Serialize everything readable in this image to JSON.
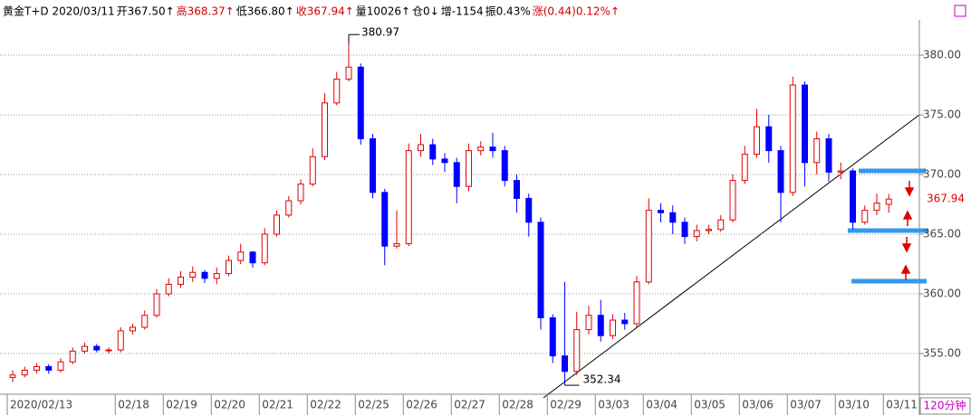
{
  "header": {
    "items": [
      {
        "text": "黄金T+D 2020/03/11",
        "color": "#000000"
      },
      {
        "text": "开367.50↑",
        "color": "#000000"
      },
      {
        "text": "高368.37↑",
        "color": "#d00000"
      },
      {
        "text": "低366.80↑",
        "color": "#000000"
      },
      {
        "text": "收367.94↑",
        "color": "#d00000"
      },
      {
        "text": "量10026↑",
        "color": "#000000"
      },
      {
        "text": "仓0↓",
        "color": "#000000"
      },
      {
        "text": "增-1154",
        "color": "#000000"
      },
      {
        "text": "振0.43%",
        "color": "#000000"
      },
      {
        "text": "涨(0.44)0.12%↑",
        "color": "#d00000"
      }
    ]
  },
  "chart_data": {
    "type": "candlestick",
    "up_color": "#e00000",
    "down_color": "#0000ff",
    "grid": true,
    "ylim": [
      351.59,
      384.17
    ],
    "yticks": [
      {
        "value": 355,
        "label": "355.00"
      },
      {
        "value": 360,
        "label": "360.00"
      },
      {
        "value": 365,
        "label": "365.00"
      },
      {
        "value": 370,
        "label": "370.00"
      },
      {
        "value": 375,
        "label": "375.00"
      },
      {
        "value": 380,
        "label": "380.00"
      }
    ],
    "xticks": [
      {
        "value": 0,
        "label": "2020/02/13"
      },
      {
        "value": 9,
        "label": "02/18"
      },
      {
        "value": 13,
        "label": "02/19"
      },
      {
        "value": 17,
        "label": "02/20"
      },
      {
        "value": 21,
        "label": "02/21"
      },
      {
        "value": 25,
        "label": "02/22"
      },
      {
        "value": 29,
        "label": "02/25"
      },
      {
        "value": 33,
        "label": "02/26"
      },
      {
        "value": 37,
        "label": "02/27"
      },
      {
        "value": 41,
        "label": "02/28"
      },
      {
        "value": 45,
        "label": "02/29"
      },
      {
        "value": 49,
        "label": "03/03"
      },
      {
        "value": 53,
        "label": "03/04"
      },
      {
        "value": 57,
        "label": "03/05"
      },
      {
        "value": 61,
        "label": "03/06"
      },
      {
        "value": 65,
        "label": "03/07"
      },
      {
        "value": 69,
        "label": "03/10"
      },
      {
        "value": 73,
        "label": "03/11"
      }
    ],
    "period": "120分钟",
    "open": [
      353.0,
      353.2,
      353.6,
      353.9,
      353.6,
      354.3,
      355.2,
      355.6,
      355.3,
      355.3,
      356.9,
      357.2,
      358.2,
      360.0,
      360.8,
      361.4,
      361.8,
      361.3,
      361.7,
      362.8,
      363.5,
      362.6,
      365.0,
      366.6,
      367.8,
      369.2,
      371.5,
      376.0,
      378.0,
      379.0,
      373.0,
      368.5,
      364.0,
      364.2,
      372.0,
      372.5,
      371.3,
      371.0,
      369.0,
      372.0,
      372.3,
      372.0,
      369.5,
      368.0,
      366.0,
      358.0,
      354.8,
      353.5,
      357.0,
      358.2,
      356.5,
      357.8,
      357.5,
      361.0,
      367.0,
      366.8,
      366.0,
      364.8,
      365.3,
      365.4,
      366.2,
      369.5,
      371.7,
      374.0,
      372.0,
      368.5,
      377.5,
      371.0,
      373.0,
      370.2,
      370.3,
      366.0,
      367.0,
      367.5
    ],
    "high": [
      353.6,
      353.9,
      354.2,
      354.1,
      354.6,
      355.5,
      355.9,
      355.8,
      355.5,
      357.2,
      357.5,
      358.6,
      360.4,
      361.3,
      361.9,
      362.3,
      362.0,
      362.2,
      363.2,
      364.2,
      363.6,
      365.5,
      367.0,
      368.2,
      369.6,
      372.2,
      376.8,
      378.6,
      380.97,
      379.3,
      373.4,
      368.8,
      367.0,
      372.6,
      373.4,
      373.0,
      371.8,
      371.4,
      372.6,
      372.8,
      373.5,
      372.4,
      370.0,
      368.4,
      366.4,
      358.3,
      361.0,
      358.5,
      359.0,
      359.5,
      358.3,
      358.4,
      361.5,
      368.0,
      367.6,
      367.4,
      366.4,
      365.8,
      365.8,
      366.6,
      370.0,
      372.4,
      375.5,
      375.0,
      372.4,
      378.2,
      377.8,
      373.6,
      373.4,
      371.0,
      370.5,
      367.4,
      368.4,
      368.37
    ],
    "low": [
      352.6,
      353.0,
      353.3,
      353.3,
      353.4,
      354.1,
      355.0,
      355.1,
      355.0,
      355.1,
      356.6,
      357.0,
      358.0,
      359.8,
      360.5,
      361.0,
      360.9,
      360.8,
      361.5,
      362.5,
      362.2,
      362.4,
      364.8,
      366.4,
      367.5,
      369.0,
      371.2,
      375.8,
      377.8,
      372.5,
      368.0,
      362.4,
      363.8,
      364.0,
      371.5,
      370.8,
      370.2,
      367.6,
      368.6,
      371.6,
      371.4,
      369.0,
      366.8,
      364.8,
      357.0,
      354.2,
      352.34,
      353.2,
      356.6,
      356.0,
      356.2,
      357.0,
      357.2,
      360.8,
      366.0,
      365.0,
      364.2,
      364.4,
      365.0,
      365.2,
      366.0,
      369.2,
      371.4,
      371.0,
      366.0,
      368.2,
      369.0,
      370.0,
      369.4,
      369.6,
      365.4,
      365.8,
      366.6,
      366.8
    ],
    "close": [
      353.2,
      353.6,
      353.9,
      353.6,
      354.3,
      355.2,
      355.6,
      355.3,
      355.3,
      356.9,
      357.2,
      358.2,
      360.0,
      360.8,
      361.4,
      361.8,
      361.3,
      361.7,
      362.8,
      363.5,
      362.6,
      365.0,
      366.6,
      367.8,
      369.2,
      371.5,
      376.0,
      378.0,
      379.0,
      373.0,
      368.5,
      364.0,
      364.2,
      372.0,
      372.5,
      371.3,
      371.0,
      369.0,
      372.0,
      372.3,
      372.0,
      369.5,
      368.0,
      366.0,
      358.0,
      354.8,
      353.5,
      357.0,
      358.2,
      356.5,
      357.8,
      357.5,
      361.0,
      367.0,
      366.8,
      366.0,
      364.8,
      365.3,
      365.4,
      366.2,
      369.5,
      371.7,
      374.0,
      372.0,
      368.5,
      377.5,
      371.0,
      373.0,
      370.2,
      370.3,
      366.0,
      367.0,
      367.6,
      367.94
    ]
  }
}
